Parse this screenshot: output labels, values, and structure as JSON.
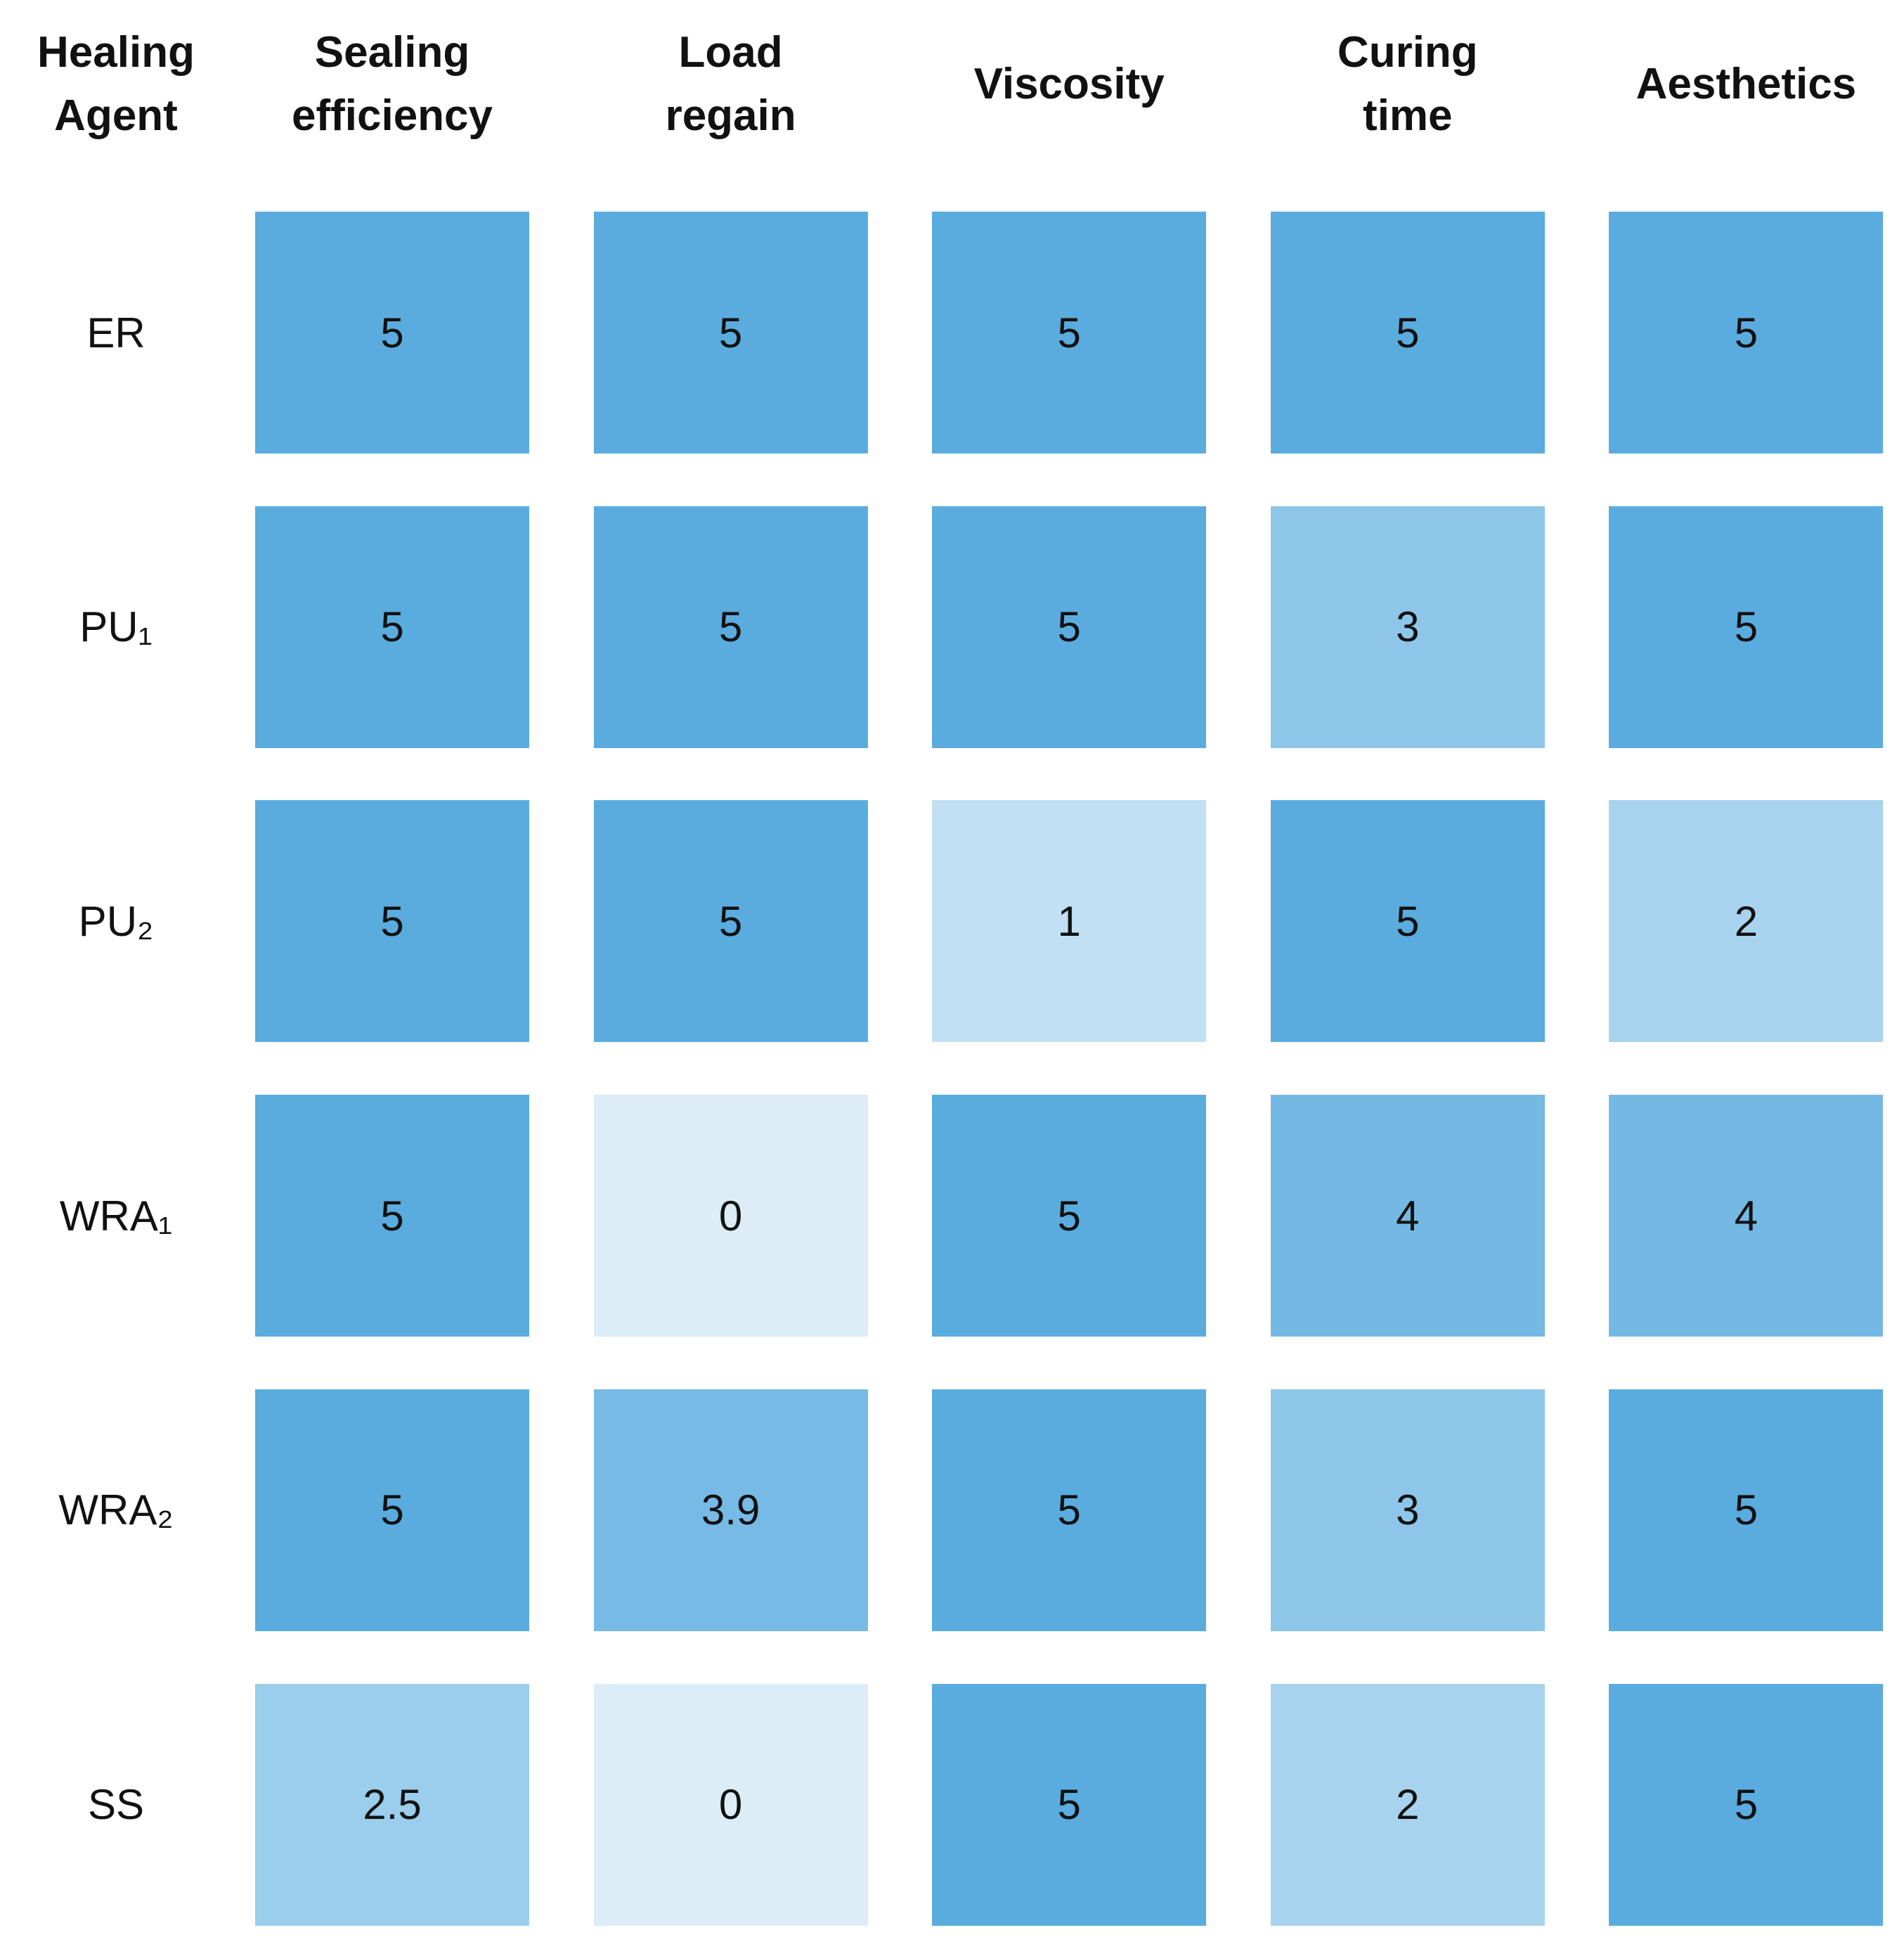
{
  "chart_data": {
    "type": "heatmap",
    "row_header": "Healing Agent",
    "columns": [
      "Sealing efficiency",
      "Load regain",
      "Viscosity",
      "Curing time",
      "Aesthetics"
    ],
    "rows": [
      "ER",
      "PU₁",
      "PU₂",
      "WRA₁",
      "WRA₂",
      "SS"
    ],
    "values": [
      [
        5,
        5,
        5,
        5,
        5
      ],
      [
        5,
        5,
        5,
        3,
        5
      ],
      [
        5,
        5,
        1,
        5,
        2
      ],
      [
        5,
        0,
        5,
        4,
        4
      ],
      [
        5,
        3.9,
        5,
        3,
        5
      ],
      [
        2.5,
        0,
        5,
        2,
        5
      ]
    ],
    "clim": [
      0,
      5
    ],
    "colors": [
      "#dcedf8",
      "#5aacdf"
    ]
  }
}
